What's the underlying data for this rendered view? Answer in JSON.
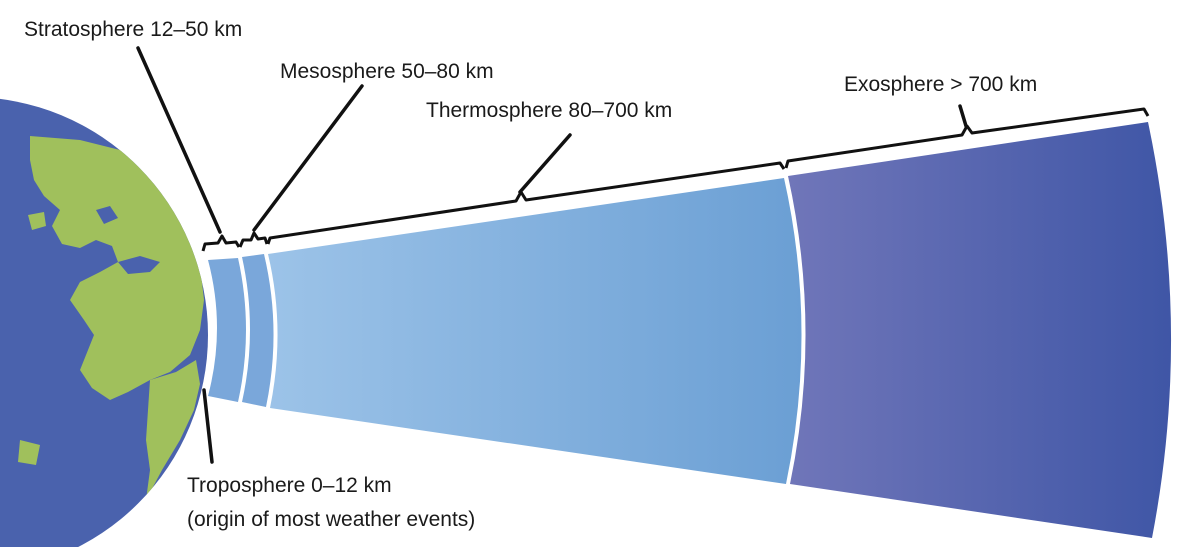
{
  "labels": {
    "stratosphere": "Stratosphere 12–50 km",
    "mesosphere": "Mesosphere 50–80 km",
    "thermosphere": "Thermosphere 80–700 km",
    "exosphere": "Exosphere > 700 km",
    "troposphere_line1": "Troposphere 0–12 km",
    "troposphere_line2": "(origin of most weather events)"
  },
  "colors": {
    "ocean": "#4a62ad",
    "land": "#a0c05c",
    "layer_light": "#7aa7da",
    "thermo_start": "#9cc3e8",
    "thermo_end": "#6b9fd4",
    "exo_start": "#7076b9",
    "exo_end": "#3f56a6",
    "bracket": "#111111"
  },
  "icons": {
    "earth": "earth-globe-icon"
  }
}
